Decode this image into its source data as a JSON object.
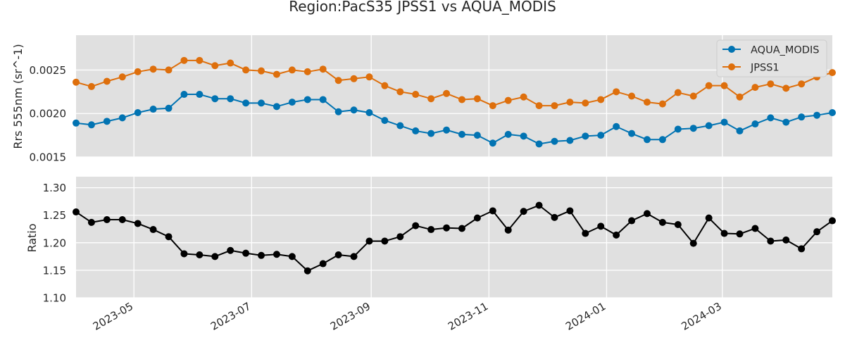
{
  "chart_data": {
    "title": "Region:PacS35 JPSS1 vs AQUA_MODIS",
    "x_dates": [
      "2023-04-01",
      "2023-04-09",
      "2023-04-17",
      "2023-04-25",
      "2023-05-03",
      "2023-05-11",
      "2023-05-19",
      "2023-05-27",
      "2023-06-04",
      "2023-06-12",
      "2023-06-20",
      "2023-06-28",
      "2023-07-06",
      "2023-07-14",
      "2023-07-22",
      "2023-07-30",
      "2023-08-07",
      "2023-08-15",
      "2023-08-23",
      "2023-08-31",
      "2023-09-08",
      "2023-09-16",
      "2023-09-24",
      "2023-10-02",
      "2023-10-10",
      "2023-10-18",
      "2023-10-26",
      "2023-11-03",
      "2023-11-11",
      "2023-11-19",
      "2023-11-27",
      "2023-12-05",
      "2023-12-13",
      "2023-12-21",
      "2023-12-29",
      "2024-01-06",
      "2024-01-14",
      "2024-01-22",
      "2024-01-30",
      "2024-02-07",
      "2024-02-15",
      "2024-02-23",
      "2024-03-02",
      "2024-03-10",
      "2024-03-18",
      "2024-03-26",
      "2024-04-03",
      "2024-04-11",
      "2024-04-19",
      "2024-04-27"
    ],
    "xlim": [
      "2023-04-01",
      "2024-04-27"
    ],
    "x_ticks": [
      "2023-05-01",
      "2023-07-01",
      "2023-09-01",
      "2023-11-01",
      "2024-01-01",
      "2024-03-01"
    ],
    "x_tick_labels": [
      "2023-05",
      "2023-07",
      "2023-09",
      "2023-11",
      "2024-01",
      "2024-03"
    ],
    "panels": [
      {
        "type": "line",
        "ylabel": "Rrs 555nm (sr^-1)",
        "ylim": [
          0.0015,
          0.0029
        ],
        "y_ticks": [
          0.0015,
          0.002,
          0.0025
        ],
        "y_tick_labels": [
          "0.0015",
          "0.0020",
          "0.0025"
        ],
        "grid": true,
        "legend": "top-right",
        "series": [
          {
            "name": "AQUA_MODIS",
            "color": "#0173b2",
            "values": [
              0.00189,
              0.00187,
              0.00191,
              0.00195,
              0.00201,
              0.00205,
              0.00206,
              0.00222,
              0.00222,
              0.00217,
              0.00217,
              0.00212,
              0.00212,
              0.00208,
              0.00213,
              0.00216,
              0.00216,
              0.00202,
              0.00204,
              0.00201,
              0.00192,
              0.00186,
              0.0018,
              0.00177,
              0.00181,
              0.00176,
              0.00175,
              0.00166,
              0.00176,
              0.00174,
              0.00165,
              0.00168,
              0.00169,
              0.00174,
              0.00175,
              0.00185,
              0.00177,
              0.0017,
              0.0017,
              0.00182,
              0.00183,
              0.00186,
              0.0019,
              0.0018,
              0.00188,
              0.00195,
              0.0019,
              0.00196,
              0.00198,
              0.00201
            ]
          },
          {
            "name": "JPSS1",
            "color": "#de6f0c",
            "values": [
              0.00236,
              0.00231,
              0.00237,
              0.00242,
              0.00248,
              0.00251,
              0.0025,
              0.00261,
              0.00261,
              0.00255,
              0.00258,
              0.0025,
              0.00249,
              0.00245,
              0.0025,
              0.00248,
              0.00251,
              0.00238,
              0.0024,
              0.00242,
              0.00232,
              0.00225,
              0.00222,
              0.00217,
              0.00223,
              0.00216,
              0.00217,
              0.00209,
              0.00215,
              0.00219,
              0.00209,
              0.00209,
              0.00213,
              0.00212,
              0.00216,
              0.00225,
              0.0022,
              0.00213,
              0.00211,
              0.00224,
              0.0022,
              0.00232,
              0.00232,
              0.00219,
              0.0023,
              0.00234,
              0.00229,
              0.00234,
              0.00242,
              0.00247
            ]
          }
        ]
      },
      {
        "type": "line",
        "ylabel": "Ratio",
        "ylim": [
          1.1,
          1.32
        ],
        "y_ticks": [
          1.1,
          1.15,
          1.2,
          1.25,
          1.3
        ],
        "y_tick_labels": [
          "1.10",
          "1.15",
          "1.20",
          "1.25",
          "1.30"
        ],
        "grid": true,
        "series": [
          {
            "color": "#000000",
            "values": [
              1.256,
              1.237,
              1.242,
              1.242,
              1.235,
              1.224,
              1.211,
              1.18,
              1.178,
              1.175,
              1.186,
              1.181,
              1.177,
              1.179,
              1.175,
              1.149,
              1.162,
              1.178,
              1.175,
              1.203,
              1.203,
              1.211,
              1.231,
              1.224,
              1.227,
              1.226,
              1.245,
              1.258,
              1.223,
              1.257,
              1.268,
              1.246,
              1.258,
              1.217,
              1.23,
              1.214,
              1.24,
              1.253,
              1.237,
              1.233,
              1.199,
              1.245,
              1.217,
              1.216,
              1.226,
              1.203,
              1.205,
              1.189,
              1.22,
              1.24
            ]
          }
        ]
      }
    ]
  }
}
